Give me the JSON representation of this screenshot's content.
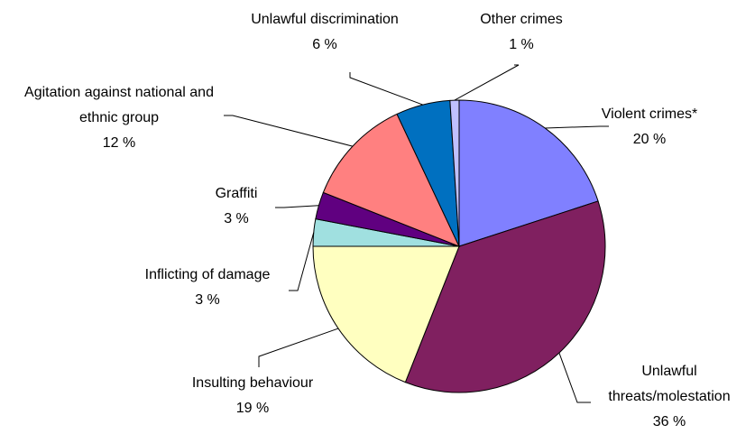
{
  "chart_data": {
    "type": "pie",
    "categories": [
      "Violent crimes*",
      "Unlawful threats/molestation",
      "Insulting behaviour",
      "Inflicting of damage",
      "Graffiti",
      "Agitation against national and ethnic group",
      "Unlawful discrimination",
      "Other crimes"
    ],
    "values": [
      20,
      36,
      19,
      3,
      3,
      12,
      6,
      1
    ],
    "value_labels": [
      "20 %",
      "36 %",
      "19 %",
      "3 %",
      "3 %",
      "12 %",
      "6 %",
      "1 %"
    ],
    "colors": [
      "#8080FF",
      "#802060",
      "#FFFFC0",
      "#A0E0E0",
      "#600080",
      "#FF8080",
      "#0070C0",
      "#C0C0FF"
    ]
  }
}
